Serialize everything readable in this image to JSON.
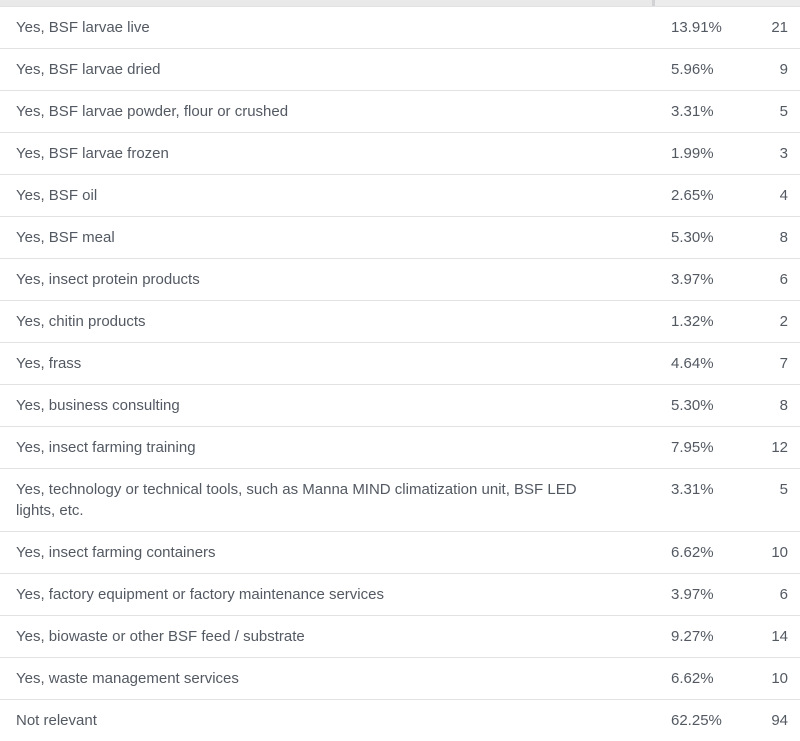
{
  "table": {
    "rows": [
      {
        "label": "Yes, BSF larvae live",
        "percent": "13.91%",
        "count": "21"
      },
      {
        "label": "Yes, BSF larvae dried",
        "percent": "5.96%",
        "count": "9"
      },
      {
        "label": "Yes, BSF larvae powder, flour or crushed",
        "percent": "3.31%",
        "count": "5"
      },
      {
        "label": "Yes, BSF larvae frozen",
        "percent": "1.99%",
        "count": "3"
      },
      {
        "label": "Yes, BSF oil",
        "percent": "2.65%",
        "count": "4"
      },
      {
        "label": "Yes, BSF meal",
        "percent": "5.30%",
        "count": "8"
      },
      {
        "label": "Yes, insect protein products",
        "percent": "3.97%",
        "count": "6"
      },
      {
        "label": "Yes, chitin products",
        "percent": "1.32%",
        "count": "2"
      },
      {
        "label": "Yes, frass",
        "percent": "4.64%",
        "count": "7"
      },
      {
        "label": "Yes, business consulting",
        "percent": "5.30%",
        "count": "8"
      },
      {
        "label": "Yes, insect farming training",
        "percent": "7.95%",
        "count": "12"
      },
      {
        "label": "Yes, technology or technical tools, such as Manna MIND climatization unit, BSF LED lights, etc.",
        "percent": "3.31%",
        "count": "5"
      },
      {
        "label": "Yes, insect farming containers",
        "percent": "6.62%",
        "count": "10"
      },
      {
        "label": "Yes, factory equipment or factory maintenance services",
        "percent": "3.97%",
        "count": "6"
      },
      {
        "label": "Yes, biowaste or other BSF feed / substrate",
        "percent": "9.27%",
        "count": "14"
      },
      {
        "label": "Yes, waste management services",
        "percent": "6.62%",
        "count": "10"
      },
      {
        "label": "Not relevant",
        "percent": "62.25%",
        "count": "94"
      }
    ]
  },
  "colors": {
    "text": "#535962",
    "row_border": "#e2e2e5",
    "header_strip_left": "#e9e9ea",
    "header_strip_right": "#ececed",
    "header_divider": "#d2d2d4",
    "background": "#ffffff"
  }
}
